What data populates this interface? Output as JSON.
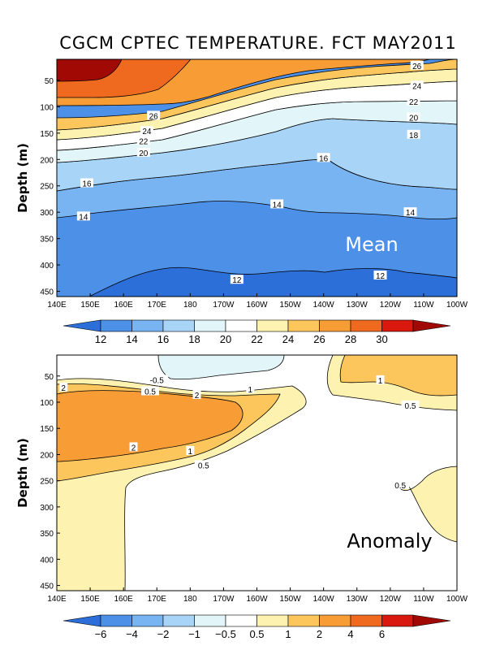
{
  "chart_data": [
    {
      "type": "contour",
      "title": "CGCM CPTEC TEMPERATURE. FCT MAY2011",
      "panel_label": "Mean",
      "ylabel": "Depth (m)",
      "x_tick_labels": [
        "140E",
        "150E",
        "160E",
        "170E",
        "180",
        "170W",
        "160W",
        "150W",
        "140W",
        "130W",
        "120W",
        "110W",
        "100W"
      ],
      "y_tick_labels": [
        "50",
        "100",
        "150",
        "200",
        "250",
        "300",
        "350",
        "400",
        "450"
      ],
      "y_tick_values": [
        50,
        100,
        150,
        200,
        250,
        300,
        350,
        400,
        450
      ],
      "ylim": [
        460,
        10
      ],
      "xlim": [
        "140E",
        "100W"
      ],
      "colorbar_labels": [
        "12",
        "14",
        "16",
        "18",
        "20",
        "22",
        "24",
        "26",
        "28",
        "30"
      ],
      "colors": [
        "#2c6fd9",
        "#4d90e8",
        "#79b4f2",
        "#a8d4f7",
        "#e2f6fa",
        "#ffffff",
        "#fdf2b0",
        "#fcc65c",
        "#f89c35",
        "#ef6a1e",
        "#d9180e",
        "#a10a04"
      ],
      "contour_labels": [
        {
          "text": "26",
          "lon": -112,
          "depth": 22
        },
        {
          "text": "24",
          "lon": -112,
          "depth": 60
        },
        {
          "text": "22",
          "lon": -113,
          "depth": 90
        },
        {
          "text": "20",
          "lon": -113,
          "depth": 120
        },
        {
          "text": "18",
          "lon": -113,
          "depth": 153
        },
        {
          "text": "26",
          "lon": 169,
          "depth": 117
        },
        {
          "text": "24",
          "lon": 167,
          "depth": 146
        },
        {
          "text": "22",
          "lon": 166,
          "depth": 165
        },
        {
          "text": "20",
          "lon": 166,
          "depth": 187
        },
        {
          "text": "16",
          "lon": -140,
          "depth": 197
        },
        {
          "text": "16",
          "lon": 149,
          "depth": 245
        },
        {
          "text": "14",
          "lon": -154,
          "depth": 285
        },
        {
          "text": "14",
          "lon": 148,
          "depth": 308
        },
        {
          "text": "14",
          "lon": -114,
          "depth": 300
        },
        {
          "text": "12",
          "lon": -166,
          "depth": 428
        },
        {
          "text": "12",
          "lon": -123,
          "depth": 420
        }
      ]
    },
    {
      "type": "contour",
      "panel_label": "Anomaly",
      "ylabel": "Depth (m)",
      "x_tick_labels": [
        "140E",
        "150E",
        "160E",
        "170E",
        "180",
        "170W",
        "160W",
        "150W",
        "140W",
        "130W",
        "120W",
        "110W",
        "100W"
      ],
      "y_tick_labels": [
        "50",
        "100",
        "150",
        "200",
        "250",
        "300",
        "350",
        "400",
        "450"
      ],
      "y_tick_values": [
        50,
        100,
        150,
        200,
        250,
        300,
        350,
        400,
        450
      ],
      "ylim": [
        460,
        10
      ],
      "xlim": [
        "140E",
        "100W"
      ],
      "colorbar_labels": [
        "−6",
        "−4",
        "−2",
        "−1",
        "−0.5",
        "0.5",
        "1",
        "2",
        "4",
        "6"
      ],
      "colors": [
        "#2c6fd9",
        "#4d90e8",
        "#79b4f2",
        "#a8d4f7",
        "#e2f6fa",
        "#ffffff",
        "#fdf2b0",
        "#fcc65c",
        "#f89c35",
        "#ef6a1e",
        "#d9180e",
        "#a10a04"
      ],
      "contour_labels": [
        {
          "text": "-0.5",
          "lon": 170,
          "depth": 57
        },
        {
          "text": "0.5",
          "lon": 168,
          "depth": 79
        },
        {
          "text": "2",
          "lon": 142,
          "depth": 72
        },
        {
          "text": "2",
          "lon": -178,
          "depth": 86
        },
        {
          "text": "1",
          "lon": -162,
          "depth": 75
        },
        {
          "text": "1",
          "lon": -123,
          "depth": 58
        },
        {
          "text": "0.5",
          "lon": -114,
          "depth": 106
        },
        {
          "text": "2",
          "lon": 163,
          "depth": 186
        },
        {
          "text": "1",
          "lon": -180,
          "depth": 193
        },
        {
          "text": "0.5",
          "lon": -176,
          "depth": 220
        },
        {
          "text": "0.5",
          "lon": -117,
          "depth": 258
        }
      ]
    }
  ]
}
